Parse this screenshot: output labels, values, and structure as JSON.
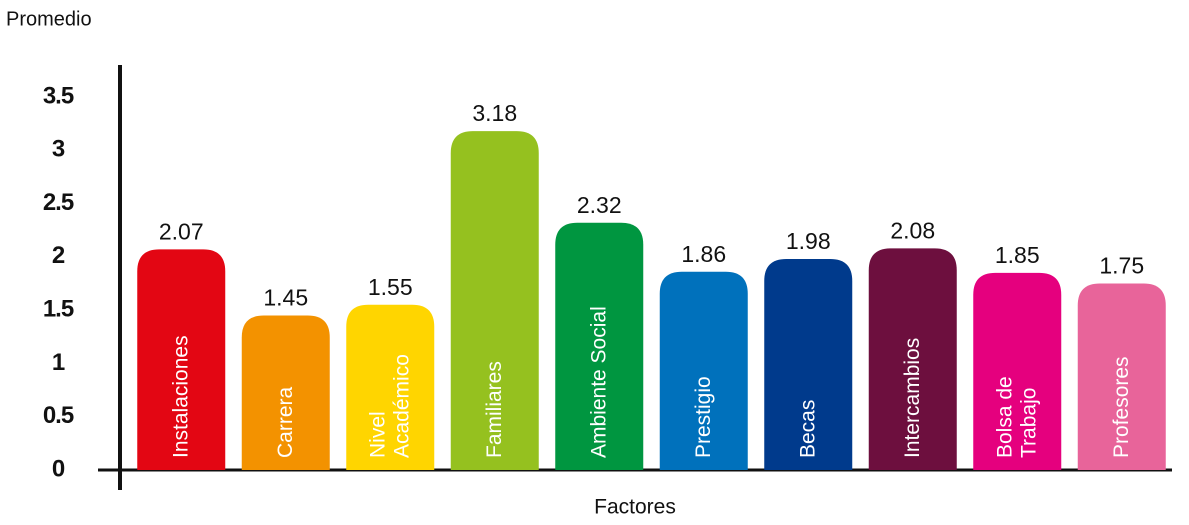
{
  "chart_data": {
    "type": "bar",
    "y_label": "Promedio",
    "x_label": "Factores",
    "categories": [
      "Instalaciones",
      "Carrera",
      "Nivel\nAcadémico",
      "Familiares",
      "Ambiente Social",
      "Prestigio",
      "Becas",
      "Intercambios",
      "Bolsa de\nTrabajo",
      "Profesores"
    ],
    "values": [
      2.07,
      1.45,
      1.55,
      3.18,
      2.32,
      1.86,
      1.98,
      2.08,
      1.85,
      1.75
    ],
    "colors": [
      "#e30613",
      "#f39200",
      "#ffd500",
      "#95c11f",
      "#009640",
      "#0071bc",
      "#003a8c",
      "#6d0f3e",
      "#e5007e",
      "#e8649a"
    ],
    "ylim": [
      0,
      3.8
    ],
    "yticks": [
      0,
      0.5,
      1,
      1.5,
      2,
      2.5,
      3,
      3.5
    ]
  }
}
